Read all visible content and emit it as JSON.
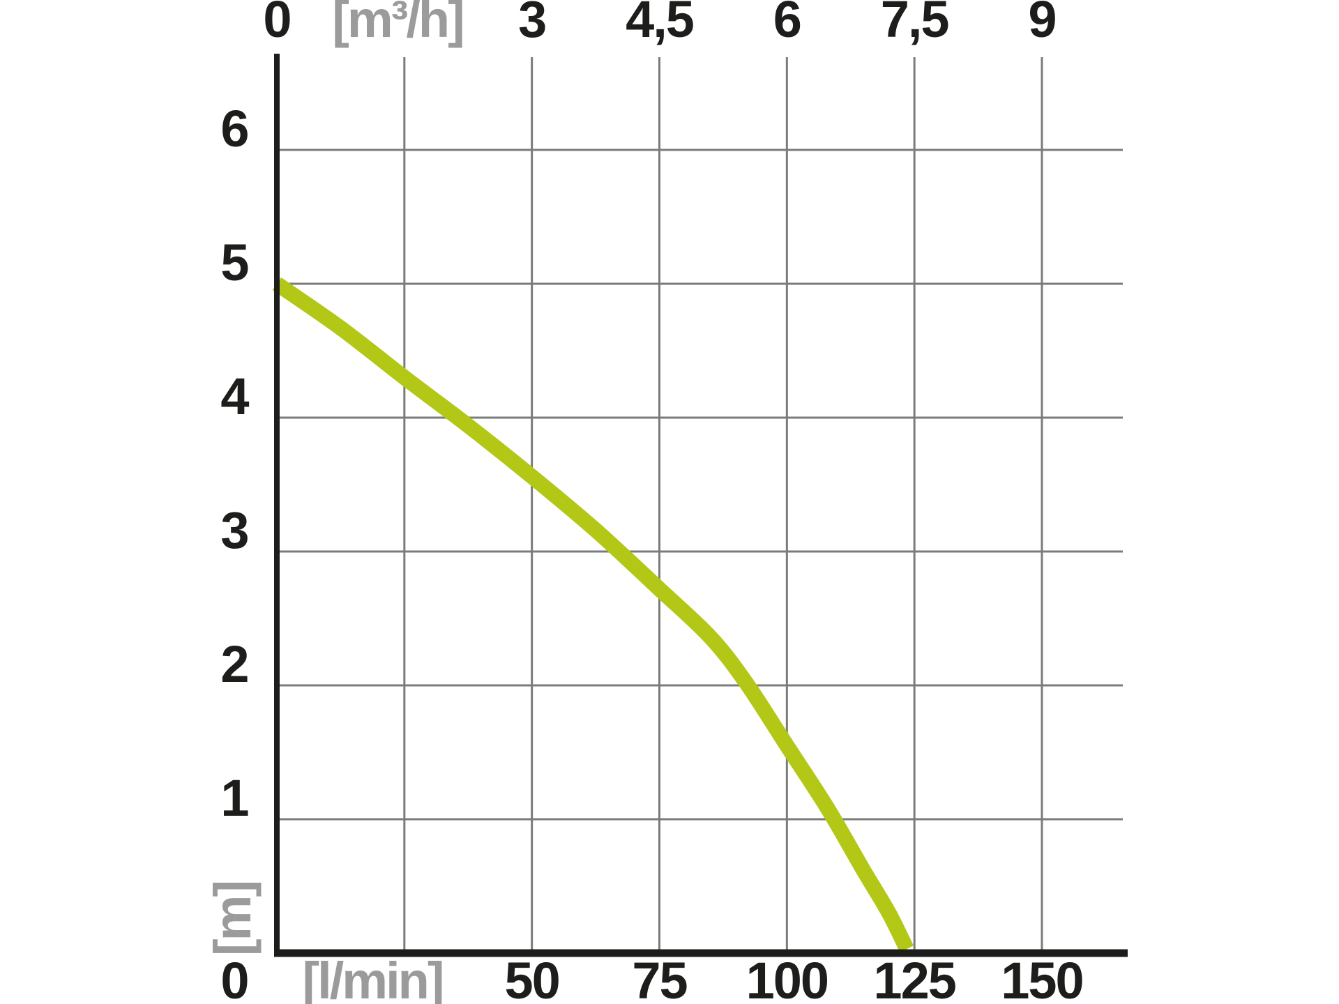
{
  "colors": {
    "background": "#ffffff",
    "label": "#1d1d1b",
    "unit_label": "#9b9b9b",
    "grid": "#7b7b7b",
    "axis": "#1d1d1b",
    "curve": "#b3c717"
  },
  "chart_data": {
    "type": "line",
    "grid": true,
    "legend": false,
    "axes": {
      "top": {
        "unit": "[m³/h]",
        "range_m3h": [
          0,
          10.0
        ],
        "gridline_values_m3h": [
          1.5,
          3,
          4.5,
          6,
          7.5,
          9
        ],
        "ticks": [
          {
            "value": 0,
            "label": "0"
          },
          {
            "value": 3,
            "label": "3"
          },
          {
            "value": 4.5,
            "label": "4,5"
          },
          {
            "value": 6,
            "label": "6"
          },
          {
            "value": 7.5,
            "label": "7,5"
          },
          {
            "value": 9,
            "label": "9"
          }
        ]
      },
      "bottom": {
        "unit": "[l/min]",
        "range_lmin": [
          0,
          167
        ],
        "ticks": [
          {
            "value": 0,
            "label": "0"
          },
          {
            "value": 50,
            "label": "50"
          },
          {
            "value": 75,
            "label": "75"
          },
          {
            "value": 100,
            "label": "100"
          },
          {
            "value": 125,
            "label": "125"
          },
          {
            "value": 150,
            "label": "150"
          }
        ]
      },
      "left": {
        "unit": "[m]",
        "range_m": [
          0,
          6.7
        ],
        "ticks": [
          {
            "value": 6,
            "label": "6"
          },
          {
            "value": 5,
            "label": "5"
          },
          {
            "value": 4,
            "label": "4"
          },
          {
            "value": 3,
            "label": "3"
          },
          {
            "value": 2,
            "label": "2"
          },
          {
            "value": 1,
            "label": "1"
          }
        ]
      }
    },
    "series": [
      {
        "name": "pump-curve",
        "color": "#b3c717",
        "stroke_width": 22,
        "points_lmin_m": [
          [
            0,
            5.0
          ],
          [
            12.5,
            4.67
          ],
          [
            25,
            4.3
          ],
          [
            37.5,
            3.94
          ],
          [
            50,
            3.56
          ],
          [
            62.5,
            3.16
          ],
          [
            75,
            2.72
          ],
          [
            85,
            2.36
          ],
          [
            92,
            2.02
          ],
          [
            100,
            1.55
          ],
          [
            108,
            1.08
          ],
          [
            115,
            0.62
          ],
          [
            120,
            0.3
          ],
          [
            123.5,
            0.03
          ]
        ]
      }
    ]
  }
}
